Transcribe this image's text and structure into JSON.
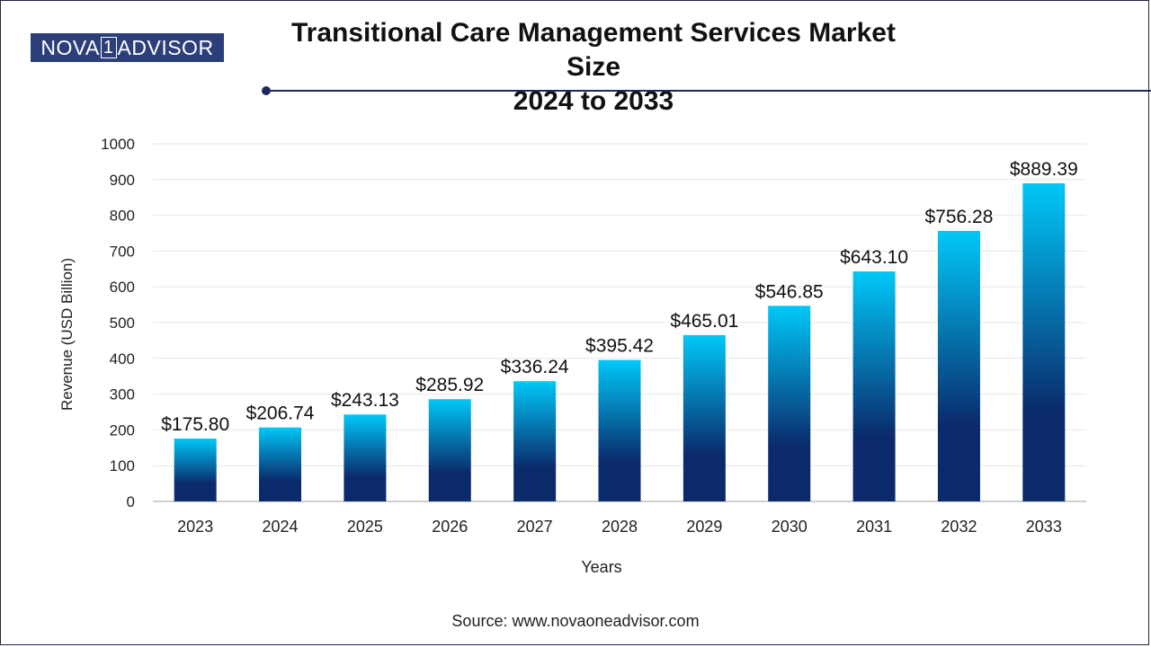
{
  "logo": {
    "left": "NOVA",
    "mid": "1",
    "right": "ADVISOR"
  },
  "title": {
    "line1": "Transitional Care Management Services Market Size",
    "line2": "2024 to 2033"
  },
  "source": "Source: www.novaoneadvisor.com",
  "colors": {
    "bar_top": "#00c8f8",
    "bar_bottom": "#0a2a6b",
    "grid": "#e6e6e6",
    "axis": "#bfbfbf",
    "text": "#222222"
  },
  "chart_data": {
    "type": "bar",
    "title": "Transitional Care Management Services Market Size 2024 to 2033",
    "xlabel": "Years",
    "ylabel": "Revenue (USD Billion)",
    "ylim": [
      0,
      1000
    ],
    "yticks": [
      0,
      100,
      200,
      300,
      400,
      500,
      600,
      700,
      800,
      900,
      1000
    ],
    "grid": true,
    "categories": [
      "2023",
      "2024",
      "2025",
      "2026",
      "2027",
      "2028",
      "2029",
      "2030",
      "2031",
      "2032",
      "2033"
    ],
    "values": [
      175.8,
      206.74,
      243.13,
      285.92,
      336.24,
      395.42,
      465.01,
      546.85,
      643.1,
      756.28,
      889.39
    ],
    "labels": [
      "$175.80",
      "$206.74",
      "$243.13",
      "$285.92",
      "$336.24",
      "$395.42",
      "$465.01",
      "$546.85",
      "$643.10",
      "$756.28",
      "$889.39"
    ]
  }
}
